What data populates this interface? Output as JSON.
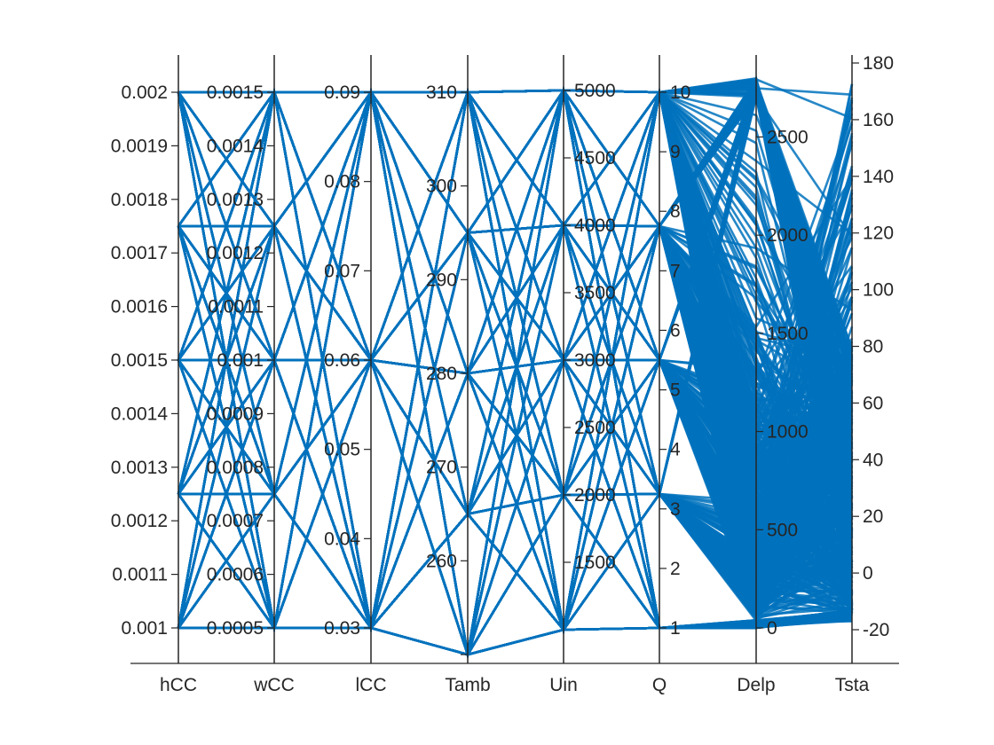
{
  "chart_data": {
    "type": "parallel-coordinates",
    "title": "",
    "line_color": "#0072BD",
    "axis_color": "#262626",
    "axes": [
      {
        "name": "hCC",
        "range": [
          0.001,
          0.002
        ],
        "ticks": [
          0.001,
          0.0011,
          0.0012,
          0.0013,
          0.0014,
          0.0015,
          0.0016,
          0.0017,
          0.0018,
          0.0019,
          0.002
        ],
        "tick_labels": [
          "0.001",
          "0.0011",
          "0.0012",
          "0.0013",
          "0.0014",
          "0.0015",
          "0.0016",
          "0.0017",
          "0.0018",
          "0.0019",
          "0.002"
        ],
        "label_side": "left",
        "levels": [
          0.001,
          0.00125,
          0.0015,
          0.00175,
          0.002
        ]
      },
      {
        "name": "wCC",
        "range": [
          0.0005,
          0.0015
        ],
        "ticks": [
          0.0005,
          0.0006,
          0.0007,
          0.0008,
          0.0009,
          0.001,
          0.0011,
          0.0012,
          0.0013,
          0.0014,
          0.0015
        ],
        "tick_labels": [
          "0.0005",
          "0.0006",
          "0.0007",
          "0.0008",
          "0.0009",
          "0.001",
          "0.0011",
          "0.0012",
          "0.0013",
          "0.0014",
          "0.0015"
        ],
        "label_side": "left",
        "levels": [
          0.0005,
          0.00075,
          0.001,
          0.00125,
          0.0015
        ]
      },
      {
        "name": "lCC",
        "range": [
          0.03,
          0.09
        ],
        "ticks": [
          0.03,
          0.04,
          0.05,
          0.06,
          0.07,
          0.08,
          0.09
        ],
        "tick_labels": [
          "0.03",
          "0.04",
          "0.05",
          "0.06",
          "0.07",
          "0.08",
          "0.09"
        ],
        "label_side": "left",
        "levels": [
          0.03,
          0.06,
          0.09
        ]
      },
      {
        "name": "Tamb",
        "range": [
          250,
          310
        ],
        "ticks": [
          250,
          260,
          270,
          280,
          290,
          300,
          310
        ],
        "tick_labels": [
          "",
          "260",
          "270",
          "280",
          "290",
          "300",
          "310"
        ],
        "label_side": "left",
        "levels": [
          250,
          265,
          280,
          295,
          310
        ]
      },
      {
        "name": "Uin",
        "range": [
          1000,
          5000
        ],
        "ticks": [
          1500,
          2000,
          2500,
          3000,
          3500,
          4000,
          4500,
          5000
        ],
        "tick_labels": [
          "1500",
          "2000",
          "2500",
          "3000",
          "3500",
          "4000",
          "4500",
          "5000"
        ],
        "label_side": "right",
        "levels": [
          1000,
          2000,
          3000,
          4000,
          5000
        ]
      },
      {
        "name": "Q",
        "range": [
          1,
          10
        ],
        "ticks": [
          1,
          2,
          3,
          4,
          5,
          6,
          7,
          8,
          9,
          10
        ],
        "tick_labels": [
          "1",
          "2",
          "3",
          "4",
          "5",
          "6",
          "7",
          "8",
          "9",
          "10"
        ],
        "label_side": "right",
        "levels": [
          1,
          3.25,
          5.5,
          7.75,
          10
        ]
      },
      {
        "name": "Delp",
        "range": [
          0,
          2800
        ],
        "ticks": [
          0,
          500,
          1000,
          1500,
          2000,
          2500
        ],
        "tick_labels": [
          "0",
          "500",
          "1000",
          "1500",
          "2000",
          "2500"
        ],
        "label_side": "right"
      },
      {
        "name": "Tsta",
        "range": [
          -20,
          175
        ],
        "ticks": [
          -20,
          0,
          20,
          40,
          60,
          80,
          100,
          120,
          140,
          160,
          180
        ],
        "tick_labels": [
          "-20",
          "0",
          "20",
          "40",
          "60",
          "80",
          "100",
          "120",
          "140",
          "160",
          "180"
        ],
        "label_side": "right"
      }
    ]
  }
}
